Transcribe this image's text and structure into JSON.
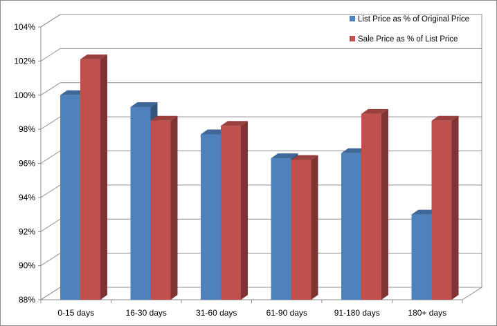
{
  "chart_data": {
    "type": "bar",
    "categories": [
      "0-15 days",
      "16-30 days",
      "31-60 days",
      "61-90 days",
      "91-180 days",
      "180+ days"
    ],
    "series": [
      {
        "name": "List Price as % of Original Price",
        "color": "#4f81bd",
        "values": [
          100.0,
          99.3,
          97.7,
          96.3,
          96.6,
          93.0
        ]
      },
      {
        "name": "Sale Price as % of List Price",
        "color": "#c0504d",
        "values": [
          102.1,
          98.5,
          98.2,
          96.2,
          98.9,
          98.5
        ]
      }
    ],
    "ylim": [
      88,
      104
    ],
    "yticks": [
      88,
      90,
      92,
      94,
      96,
      98,
      100,
      102,
      104
    ],
    "ytick_labels": [
      "88%",
      "90%",
      "92%",
      "94%",
      "96%",
      "98%",
      "100%",
      "102%",
      "104%"
    ],
    "grid": true,
    "three_d": true,
    "legend_position": "top-right",
    "title": "",
    "xlabel": "",
    "ylabel": ""
  }
}
